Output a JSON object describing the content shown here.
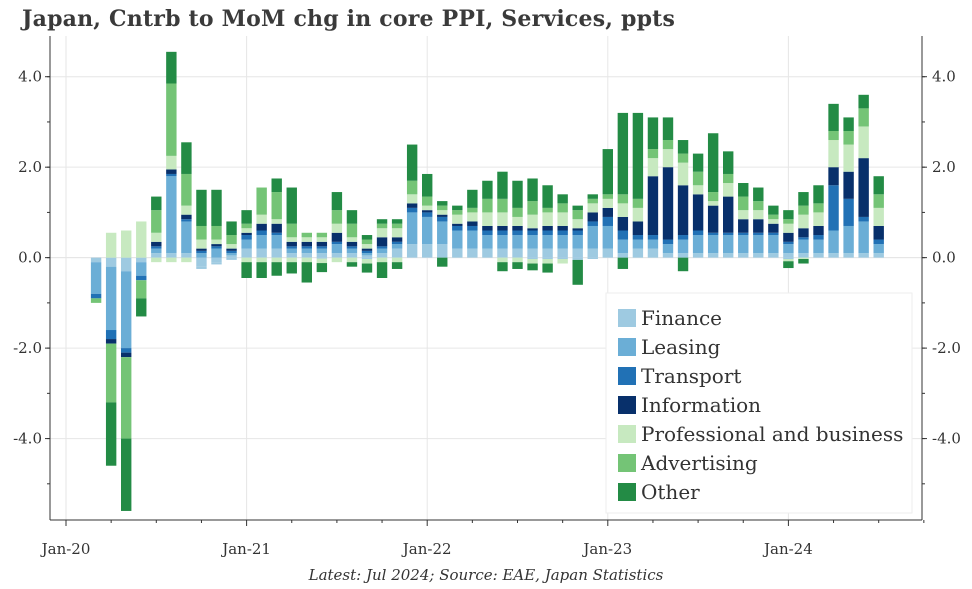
{
  "title": "Japan, Cntrb to MoM chg in core PPI, Services, ppts",
  "source": "Latest: Jul 2024; Source: EAE, Japan Statistics",
  "chart_data": {
    "type": "bar",
    "stacked": true,
    "start": "2020-01",
    "categories": [
      "2020-03",
      "2020-04",
      "2020-05",
      "2020-06",
      "2020-07",
      "2020-08",
      "2020-09",
      "2020-10",
      "2020-11",
      "2020-12",
      "2021-01",
      "2021-02",
      "2021-03",
      "2021-04",
      "2021-05",
      "2021-06",
      "2021-07",
      "2021-08",
      "2021-09",
      "2021-10",
      "2021-11",
      "2021-12",
      "2022-01",
      "2022-02",
      "2022-03",
      "2022-04",
      "2022-05",
      "2022-06",
      "2022-07",
      "2022-08",
      "2022-09",
      "2022-10",
      "2022-11",
      "2022-12",
      "2023-01",
      "2023-02",
      "2023-03",
      "2023-04",
      "2023-05",
      "2023-06",
      "2023-07",
      "2023-08",
      "2023-09",
      "2023-10",
      "2023-11",
      "2023-12",
      "2024-01",
      "2024-02",
      "2024-03",
      "2024-04",
      "2024-05",
      "2024-06",
      "2024-07"
    ],
    "x_ticks": [
      "Jan-20",
      "Jan-21",
      "Jan-22",
      "Jan-23",
      "Jan-24"
    ],
    "y_ticks": [
      "-4.0",
      "-2.0",
      "0.0",
      "2.0",
      "4.0"
    ],
    "ylim": [
      -5.8,
      4.9
    ],
    "legend_position": "bottom-right",
    "grid": true,
    "series": [
      {
        "name": "Finance",
        "color": "#9ecae1",
        "values": [
          -0.1,
          -0.2,
          -0.3,
          -0.1,
          0.1,
          0.1,
          0.1,
          -0.2,
          -0.1,
          0.05,
          0.2,
          0.2,
          0.2,
          0.1,
          0.1,
          0.1,
          0.1,
          0.1,
          0.05,
          0.1,
          0.2,
          0.3,
          0.3,
          0.3,
          0.2,
          0.2,
          0.2,
          0.2,
          0.2,
          0.2,
          0.2,
          0.2,
          0.2,
          0.2,
          0.2,
          0.1,
          0.2,
          0.2,
          0.1,
          0.1,
          0.1,
          0.1,
          0.1,
          0.1,
          0.1,
          0.1,
          0.1,
          0.1,
          0.1,
          0.1,
          0.1,
          0.1,
          0.1
        ]
      },
      {
        "name": "Leasing",
        "color": "#6baed6",
        "values": [
          -0.7,
          -1.4,
          -1.7,
          -0.3,
          0.1,
          1.7,
          0.7,
          0.1,
          0.2,
          0.05,
          0.2,
          0.3,
          0.3,
          0.1,
          0.1,
          0.1,
          0.2,
          0.1,
          0.05,
          0.1,
          0.1,
          0.7,
          0.6,
          0.5,
          0.4,
          0.4,
          0.3,
          0.3,
          0.3,
          0.3,
          0.3,
          0.3,
          0.3,
          0.5,
          0.5,
          0.3,
          0.2,
          0.2,
          0.2,
          0.3,
          0.4,
          0.4,
          0.4,
          0.4,
          0.4,
          0.4,
          0.2,
          0.3,
          0.3,
          0.5,
          0.6,
          0.7,
          0.2
        ]
      },
      {
        "name": "Transport",
        "color": "#2171b5",
        "values": [
          -0.1,
          -0.2,
          -0.1,
          -0.1,
          0.05,
          0.05,
          0.05,
          0.05,
          0.05,
          0.05,
          0.1,
          0.1,
          0.05,
          0.05,
          0.05,
          0.05,
          0.05,
          0.05,
          0.05,
          0.05,
          0.05,
          0.1,
          0.1,
          0.1,
          0.1,
          0.1,
          0.1,
          0.1,
          0.1,
          0.1,
          0.1,
          0.1,
          0.1,
          0.1,
          0.2,
          0.2,
          0.1,
          0.1,
          0.1,
          0.1,
          0.1,
          0.05,
          0.05,
          0.05,
          0.05,
          0.05,
          0.05,
          0.05,
          0.1,
          1.0,
          0.6,
          0.1,
          0.1
        ]
      },
      {
        "name": "Information",
        "color": "#08306b",
        "values": [
          0.0,
          -0.1,
          -0.1,
          0.0,
          0.1,
          0.1,
          0.1,
          0.05,
          0.05,
          0.05,
          0.05,
          0.15,
          0.2,
          0.1,
          0.1,
          0.1,
          0.2,
          0.1,
          0.05,
          0.2,
          0.1,
          0.1,
          0.05,
          0.05,
          0.05,
          0.1,
          0.1,
          0.1,
          0.1,
          0.05,
          0.1,
          0.1,
          0.05,
          0.2,
          0.2,
          0.3,
          0.3,
          1.3,
          1.6,
          1.1,
          0.8,
          0.6,
          0.8,
          0.3,
          0.3,
          0.2,
          0.2,
          0.2,
          0.2,
          0.4,
          0.6,
          1.3,
          0.3
        ]
      },
      {
        "name": "Professional and business",
        "color": "#c7e9c0",
        "values": [
          0.0,
          0.55,
          0.6,
          0.8,
          0.2,
          0.3,
          0.2,
          0.2,
          0.1,
          0.1,
          0.1,
          0.2,
          0.1,
          0.1,
          0.1,
          0.1,
          0.2,
          0.1,
          0.1,
          0.2,
          0.2,
          0.2,
          0.1,
          0.1,
          0.2,
          0.2,
          0.3,
          0.3,
          0.2,
          0.3,
          0.3,
          0.3,
          0.2,
          0.2,
          0.2,
          0.3,
          0.3,
          0.4,
          0.4,
          0.5,
          0.2,
          0.1,
          0.3,
          0.2,
          0.2,
          0.1,
          0.2,
          0.3,
          0.3,
          0.6,
          0.6,
          0.7,
          0.4
        ]
      },
      {
        "name": "Advertising",
        "color": "#74c476",
        "values": [
          -0.1,
          -1.3,
          -1.8,
          -0.4,
          0.5,
          1.6,
          0.7,
          0.3,
          0.3,
          0.2,
          0.1,
          0.6,
          0.6,
          0.3,
          0.1,
          0.1,
          0.3,
          0.3,
          0.1,
          0.1,
          0.1,
          0.3,
          0.2,
          0.1,
          0.1,
          0.1,
          0.3,
          0.3,
          0.2,
          0.3,
          0.1,
          0.2,
          0.2,
          0.1,
          0.1,
          0.2,
          0.2,
          0.2,
          0.2,
          0.2,
          0.3,
          0.2,
          0.2,
          0.3,
          0.2,
          0.1,
          0.1,
          0.2,
          0.2,
          0.2,
          0.3,
          0.4,
          0.3
        ]
      },
      {
        "name": "Other",
        "color": "#238b45",
        "values": [
          0.0,
          -1.4,
          -1.6,
          -0.4,
          0.3,
          0.7,
          0.7,
          0.8,
          0.8,
          0.3,
          0.3,
          0.0,
          0.3,
          0.8,
          0.0,
          0.0,
          0.4,
          0.3,
          0.1,
          0.1,
          0.1,
          0.8,
          0.5,
          0.1,
          0.1,
          0.4,
          0.4,
          0.6,
          0.6,
          0.5,
          0.5,
          0.2,
          0.1,
          0.1,
          1.0,
          1.8,
          1.9,
          0.7,
          0.5,
          0.3,
          0.4,
          1.3,
          0.5,
          0.3,
          0.3,
          0.2,
          0.2,
          0.3,
          0.4,
          0.6,
          0.3,
          0.3,
          0.4
        ]
      }
    ],
    "negatives": {
      "Finance": [
        null,
        null,
        null,
        null,
        null,
        null,
        null,
        -0.05,
        -0.05,
        -0.05,
        null,
        null,
        null,
        null,
        null,
        -0.02,
        null,
        null,
        -0.03,
        null,
        null,
        null,
        null,
        null,
        null,
        null,
        null,
        null,
        null,
        -0.03,
        -0.03,
        -0.03,
        -0.05,
        -0.03,
        null,
        null,
        null,
        null,
        null,
        null,
        null,
        null,
        null,
        null,
        null,
        null,
        -0.03,
        null,
        null,
        null,
        null,
        null,
        null
      ],
      "Professional and business": [
        null,
        null,
        null,
        null,
        -0.1,
        -0.1,
        -0.1,
        null,
        null,
        null,
        -0.1,
        -0.1,
        -0.1,
        -0.1,
        -0.1,
        -0.1,
        -0.1,
        -0.1,
        -0.1,
        -0.1,
        -0.1,
        null,
        null,
        null,
        null,
        null,
        null,
        -0.1,
        -0.1,
        -0.1,
        -0.1,
        -0.1,
        null,
        null,
        null,
        null,
        null,
        null,
        null,
        null,
        null,
        null,
        null,
        null,
        null,
        null,
        -0.05,
        -0.03,
        null,
        null,
        null,
        null,
        null
      ],
      "Other": [
        null,
        null,
        null,
        null,
        null,
        null,
        null,
        null,
        null,
        null,
        -0.35,
        -0.35,
        -0.3,
        -0.25,
        -0.45,
        -0.2,
        null,
        -0.1,
        -0.2,
        -0.35,
        -0.15,
        null,
        null,
        -0.2,
        null,
        null,
        null,
        -0.2,
        -0.15,
        -0.15,
        -0.2,
        null,
        -0.55,
        null,
        null,
        -0.25,
        null,
        null,
        null,
        -0.3,
        null,
        null,
        null,
        null,
        null,
        null,
        -0.15,
        -0.1,
        null,
        null,
        null,
        null,
        null
      ]
    }
  }
}
